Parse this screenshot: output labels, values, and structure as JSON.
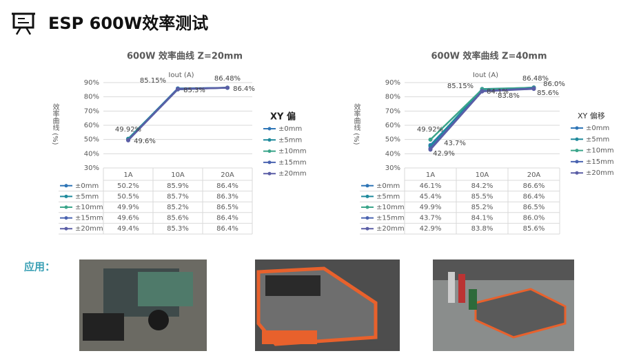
{
  "title": "ESP 600W效率测试",
  "application_label": "应用：",
  "chart_data": [
    {
      "type": "line",
      "title": "600W 效率曲线 Z=20mm",
      "x_axis_label": "Iout (A)",
      "y_axis_label": "效率曲线 (%)",
      "legend_title": "XY 偏",
      "categories": [
        "1A",
        "10A",
        "20A"
      ],
      "ylim": [
        30,
        90
      ],
      "yticks": [
        {
          "value": 30,
          "label": "30%"
        },
        {
          "value": 40,
          "label": "40%"
        },
        {
          "value": 50,
          "label": "50%"
        },
        {
          "value": 60,
          "label": "60%"
        },
        {
          "value": 70,
          "label": "70%"
        },
        {
          "value": 80,
          "label": "80%"
        },
        {
          "value": 90,
          "label": "90%"
        }
      ],
      "annotations": [
        "85.15%",
        "86.48%",
        "49.92%",
        "49.6%",
        "85.3%",
        "86.4%"
      ],
      "series": [
        {
          "name": "±0mm",
          "color": "#2e75b6",
          "values": [
            50.2,
            85.9,
            86.4
          ],
          "value_labels": [
            "50.2%",
            "85.9%",
            "86.4%"
          ]
        },
        {
          "name": "±5mm",
          "color": "#1f8a9c",
          "values": [
            50.5,
            85.7,
            86.3
          ],
          "value_labels": [
            "50.5%",
            "85.7%",
            "86.3%"
          ]
        },
        {
          "name": "±10mm",
          "color": "#3aa58a",
          "values": [
            49.9,
            85.2,
            86.5
          ],
          "value_labels": [
            "49.9%",
            "85.2%",
            "86.5%"
          ]
        },
        {
          "name": "±15mm",
          "color": "#4a63b0",
          "values": [
            49.6,
            85.6,
            86.4
          ],
          "value_labels": [
            "49.6%",
            "85.6%",
            "86.4%"
          ]
        },
        {
          "name": "±20mm",
          "color": "#5b5ea6",
          "values": [
            49.4,
            85.3,
            86.4
          ],
          "value_labels": [
            "49.4%",
            "85.3%",
            "86.4%"
          ]
        }
      ]
    },
    {
      "type": "line",
      "title": "600W 效率曲线 Z=40mm",
      "x_axis_label": "Iout (A)",
      "y_axis_label": "效率曲线 (%)",
      "legend_title": "XY 偏移",
      "categories": [
        "1A",
        "10A",
        "20A"
      ],
      "ylim": [
        30,
        90
      ],
      "yticks": [
        {
          "value": 30,
          "label": "30%"
        },
        {
          "value": 40,
          "label": "40%"
        },
        {
          "value": 50,
          "label": "50%"
        },
        {
          "value": 60,
          "label": "60%"
        },
        {
          "value": 70,
          "label": "70%"
        },
        {
          "value": 80,
          "label": "80%"
        },
        {
          "value": 90,
          "label": "90%"
        }
      ],
      "annotations": [
        "85.15%",
        "86.48%",
        "49.92%",
        "43.7%",
        "42.9%",
        "84.1%",
        "83.8%",
        "86.0%",
        "85.6%"
      ],
      "series": [
        {
          "name": "±0mm",
          "color": "#2e75b6",
          "values": [
            46.1,
            84.2,
            86.6
          ],
          "value_labels": [
            "46.1%",
            "84.2%",
            "86.6%"
          ]
        },
        {
          "name": "±5mm",
          "color": "#1f8a9c",
          "values": [
            45.4,
            85.5,
            86.4
          ],
          "value_labels": [
            "45.4%",
            "85.5%",
            "86.4%"
          ]
        },
        {
          "name": "±10mm",
          "color": "#3aa58a",
          "values": [
            49.9,
            85.2,
            86.5
          ],
          "value_labels": [
            "49.9%",
            "85.2%",
            "86.5%"
          ]
        },
        {
          "name": "±15mm",
          "color": "#4a63b0",
          "values": [
            43.7,
            84.1,
            86.0
          ],
          "value_labels": [
            "43.7%",
            "84.1%",
            "86.0%"
          ]
        },
        {
          "name": "±20mm",
          "color": "#5b5ea6",
          "values": [
            42.9,
            83.8,
            85.6
          ],
          "value_labels": [
            "42.9%",
            "83.8%",
            "85.6%"
          ]
        }
      ]
    }
  ]
}
